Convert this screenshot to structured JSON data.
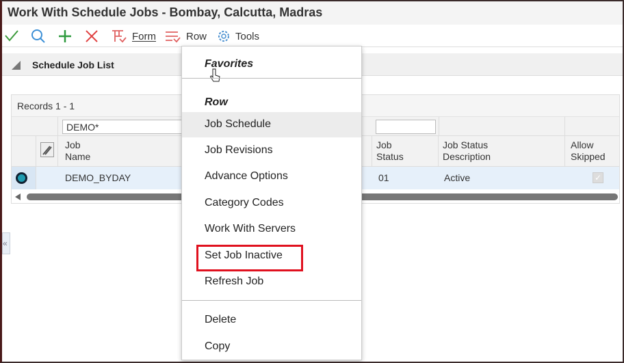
{
  "window": {
    "title": "Work With Schedule Jobs - Bombay, Calcutta, Madras"
  },
  "toolbar": {
    "icons": [
      "check-icon",
      "search-icon",
      "plus-icon",
      "close-icon"
    ],
    "form_label": "Form",
    "row_label": "Row",
    "tools_label": "Tools"
  },
  "section": {
    "title": "Schedule Job List"
  },
  "grid": {
    "records": "Records 1 - 1",
    "filter_job_name": "DEMO*",
    "filter_job_status": "",
    "columns": [
      "Job Name",
      "Job Status",
      "Job Status Description",
      "Allow Skipped"
    ],
    "col_lines": [
      [
        "Job",
        "Name"
      ],
      [
        "Job",
        "Status"
      ],
      [
        "Job Status",
        "Description"
      ],
      [
        "Allow",
        "Skipped"
      ]
    ],
    "rows": [
      {
        "job_name": "DEMO_BYDAY",
        "job_status": "01",
        "job_status_description": "Active",
        "allow_skipped": true
      }
    ]
  },
  "menu": {
    "favorites": "Favorites",
    "row": "Row",
    "items": [
      "Job Schedule",
      "Job Revisions",
      "Advance Options",
      "Category Codes",
      "Work With Servers",
      "Set Job Inactive",
      "Refresh Job"
    ],
    "items2": [
      "Delete",
      "Copy"
    ],
    "highlighted": "Job Schedule",
    "boxed": "Set Job Inactive"
  },
  "colors": {
    "accent": "#1e9bb0",
    "highlight_box": "#e0101e"
  }
}
